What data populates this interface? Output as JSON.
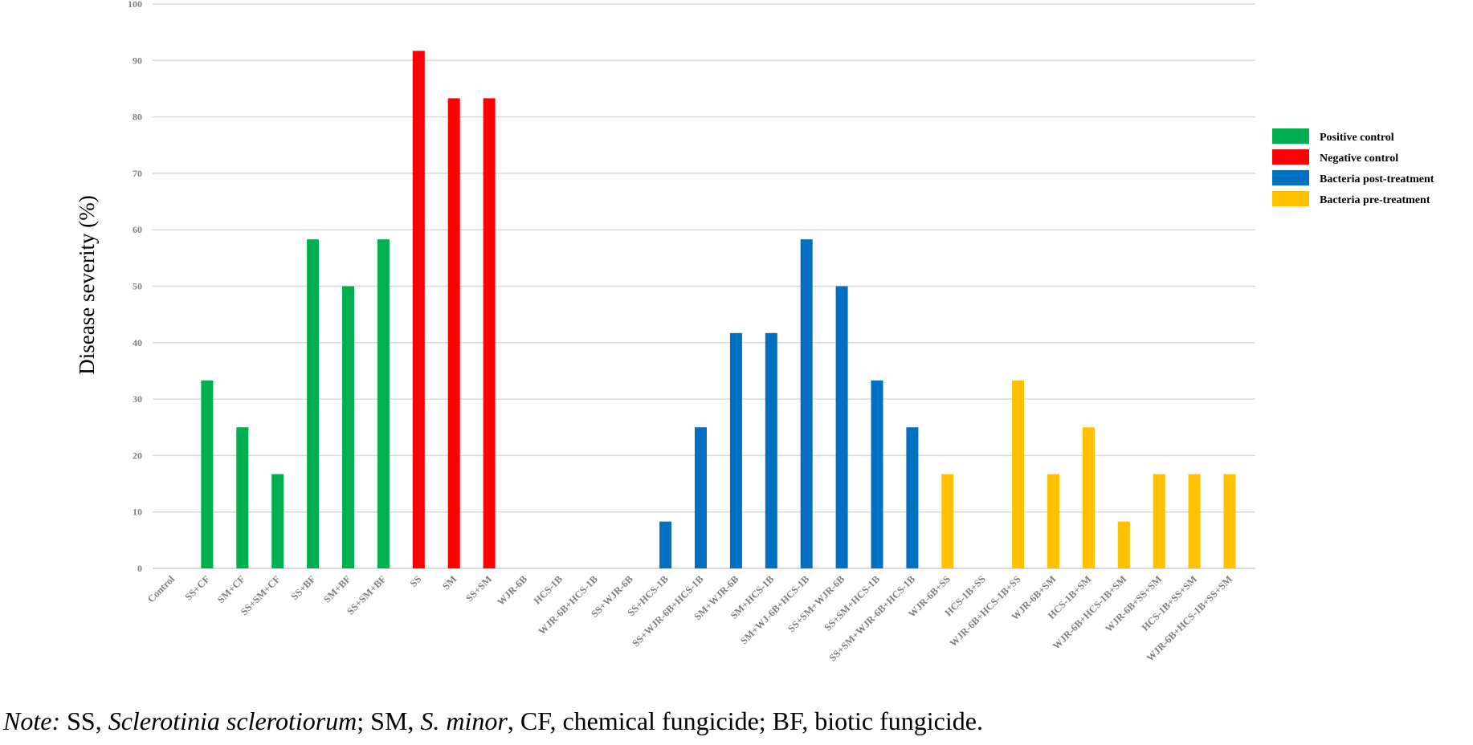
{
  "chart_data": {
    "type": "bar",
    "ylabel": "Disease severity (%)",
    "ylim": [
      0,
      100
    ],
    "yticks": [
      0,
      10,
      20,
      30,
      40,
      50,
      60,
      70,
      80,
      90,
      100
    ],
    "grid": true,
    "legend_position": "right",
    "categories": [
      "Control",
      "SS+CF",
      "SM+CF",
      "SS+SM+CF",
      "SS+BF",
      "SM+BF",
      "SS+SM+BF",
      "SS",
      "SM",
      "SS+SM",
      "WJR-6B",
      "HCS-1B",
      "WJR-6B+HCS-1B",
      "SS+WJR-6B",
      "SS+HCS-1B",
      "SS+WJR-6B+HCS-1B",
      "SM+WJR-6B",
      "SM+HCS-1B",
      "SM+WJ-6B+HCS-1B",
      "SS+SM+WJR-6B",
      "SS+SM+HCS-1B",
      "SS+SM+WJR-6B+HCS-1B",
      "WJR-6B+SS",
      "HCS-1B+SS",
      "WJR-6B+HCS-1B+SS",
      "WJR-6B+SM",
      "HCS-1B+SM",
      "WJR-6B+HCS-1B+SM",
      "WJR-6B+SS+SM",
      "HCS-1B+SS+SM",
      "WJR-6B+HCS-1B+SS+SM"
    ],
    "values": [
      0,
      33.3,
      25,
      16.7,
      58.3,
      50,
      58.3,
      91.7,
      83.3,
      83.3,
      0,
      0,
      0,
      0,
      8.3,
      25,
      41.7,
      41.7,
      58.3,
      50,
      33.3,
      25,
      16.7,
      0,
      33.3,
      16.7,
      25,
      8.3,
      16.7,
      16.7,
      16.7
    ],
    "groups": [
      0,
      1,
      1,
      1,
      1,
      1,
      1,
      2,
      2,
      2,
      3,
      3,
      3,
      3,
      3,
      3,
      3,
      3,
      3,
      3,
      3,
      3,
      4,
      4,
      4,
      4,
      4,
      4,
      4,
      4,
      4
    ],
    "series": [
      {
        "name": "Positive control",
        "color": "#00b050"
      },
      {
        "name": "Negative control",
        "color": "#ff0000"
      },
      {
        "name": "Bacteria post-treatment",
        "color": "#0070c0"
      },
      {
        "name": "Bacteria pre-treatment",
        "color": "#ffc000"
      }
    ]
  },
  "note": {
    "lead": "Note:",
    "t1": " SS, ",
    "i1": "Sclerotinia sclerotiorum",
    "t2": "; SM, ",
    "i2": "S. minor",
    "t3": ", CF, chemical fungicide; BF, biotic fungicide."
  }
}
